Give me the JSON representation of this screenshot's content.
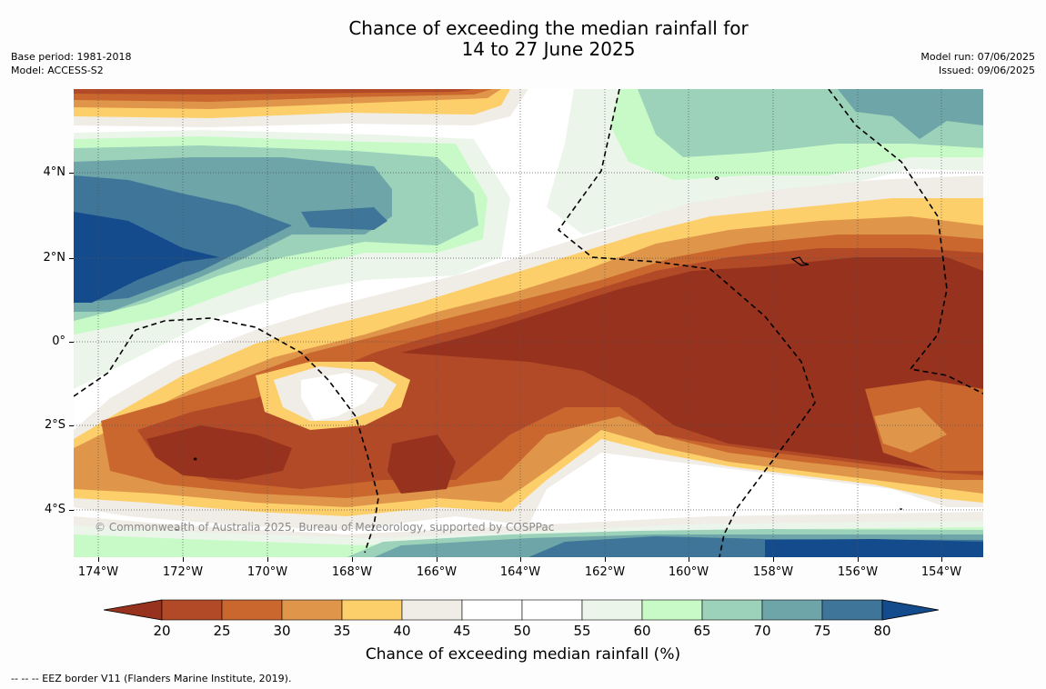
{
  "header": {
    "title_line1": "Chance of exceeding the median rainfall for",
    "title_line2": "14 to 27 June 2025",
    "base_period": "Base period: 1981-2018",
    "model": "Model: ACCESS-S2",
    "model_run": "Model run: 07/06/2025",
    "issued": "Issued: 09/06/2025"
  },
  "map": {
    "x_ticks": [
      "174°W",
      "172°W",
      "170°W",
      "168°W",
      "166°W",
      "164°W",
      "162°W",
      "160°W",
      "158°W",
      "156°W",
      "154°W"
    ],
    "y_ticks": [
      "4°N",
      "2°N",
      "0°",
      "2°S",
      "4°S"
    ],
    "copyright": "© Commonwealth of Australia 2025, Bureau of Meteorology, supported by COSPPac"
  },
  "colorbar": {
    "title": "Chance of exceeding median rainfall (%)",
    "labels": [
      "20",
      "25",
      "30",
      "35",
      "40",
      "45",
      "50",
      "55",
      "60",
      "65",
      "70",
      "75",
      "80"
    ],
    "colors": [
      "#96321e",
      "#b24a28",
      "#c9672f",
      "#e0964a",
      "#fdcf6a",
      "#f0ece6",
      "#ffffff",
      "#ffffff",
      "#ebf5ea",
      "#c8fac8",
      "#9bd2b9",
      "#6ea5a8",
      "#3e7598",
      "#134b8c"
    ]
  },
  "footnote": "--  --  -- EEZ border V11 (Flanders Marine Institute, 2019)."
}
